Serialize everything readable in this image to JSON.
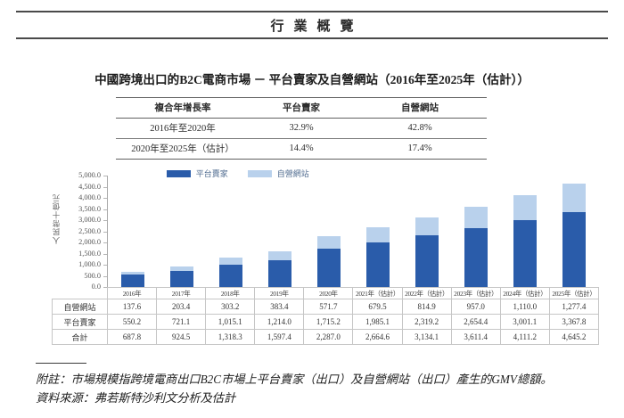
{
  "page": {
    "banner_title": "行業概覽",
    "chart_title": "中國跨境出口的B2C電商市場 － 平台賣家及自營網站（2016年至2025年（估計））",
    "footnote_note": "附註：市場規模指跨境電商出口B2C市場上平台賣家（出口）及自營網站（出口）產生的GMV總額。",
    "footnote_source": "資料來源：弗若斯特沙利文分析及估計"
  },
  "cagr_table": {
    "headers": [
      "複合年增長率",
      "平台賣家",
      "自營網站"
    ],
    "rows": [
      [
        "2016年至2020年",
        "32.9%",
        "42.8%"
      ],
      [
        "2020年至2025年（估計）",
        "14.4%",
        "17.4%"
      ]
    ]
  },
  "chart_data": {
    "type": "bar",
    "stacked": true,
    "title": "中國跨境出口的B2C電商市場 － 平台賣家及自營網站（2016年至2025年（估計））",
    "xlabel": "",
    "ylabel": "人民幣十億元",
    "ylim": [
      0,
      5000
    ],
    "ytick_step": 500,
    "ytick_labels": [
      "5,000.0",
      "4,500.0",
      "4,000.0",
      "3,500.0",
      "3,000.0",
      "2,500.0",
      "2,000.0",
      "1,500.0",
      "1,000.0",
      "500.0",
      "0.0"
    ],
    "grid": false,
    "legend_position": "top-center",
    "categories": [
      "2016年",
      "2017年",
      "2018年",
      "2019年",
      "2020年",
      "2021年（估計）",
      "2022年（估計）",
      "2023年（估計）",
      "2024年（估計）",
      "2025年（估計）"
    ],
    "series": [
      {
        "name": "平台賣家",
        "color": "#2a5caa",
        "values": [
          550.2,
          721.1,
          1015.1,
          1214.0,
          1715.2,
          1985.1,
          2319.2,
          2654.4,
          3001.1,
          3367.8
        ]
      },
      {
        "name": "自營網站",
        "color": "#b9d1ec",
        "values": [
          137.6,
          203.4,
          303.2,
          383.4,
          571.7,
          679.5,
          814.9,
          957.0,
          1110.0,
          1277.4
        ]
      }
    ],
    "totals": [
      687.8,
      924.5,
      1318.3,
      1597.4,
      2287.0,
      2664.6,
      3134.1,
      3611.4,
      4111.2,
      4645.2
    ]
  },
  "data_table": {
    "rows": [
      {
        "label": "自營網站",
        "cells": [
          "137.6",
          "203.4",
          "303.2",
          "383.4",
          "571.7",
          "679.5",
          "814.9",
          "957.0",
          "1,110.0",
          "1,277.4"
        ]
      },
      {
        "label": "平台賣家",
        "cells": [
          "550.2",
          "721.1",
          "1,015.1",
          "1,214.0",
          "1,715.2",
          "1,985.1",
          "2,319.2",
          "2,654.4",
          "3,001.1",
          "3,367.8"
        ]
      },
      {
        "label": "合計",
        "cells": [
          "687.8",
          "924.5",
          "1,318.3",
          "1,597.4",
          "2,287.0",
          "2,664.6",
          "3,134.1",
          "3,611.4",
          "4,111.2",
          "4,645.2"
        ]
      }
    ]
  },
  "colors": {
    "platform_sellers": "#2a5caa",
    "self_operated_sites": "#b9d1ec",
    "rule_dark": "#4a4a4a",
    "table_border_light": "#c6c6c6"
  }
}
